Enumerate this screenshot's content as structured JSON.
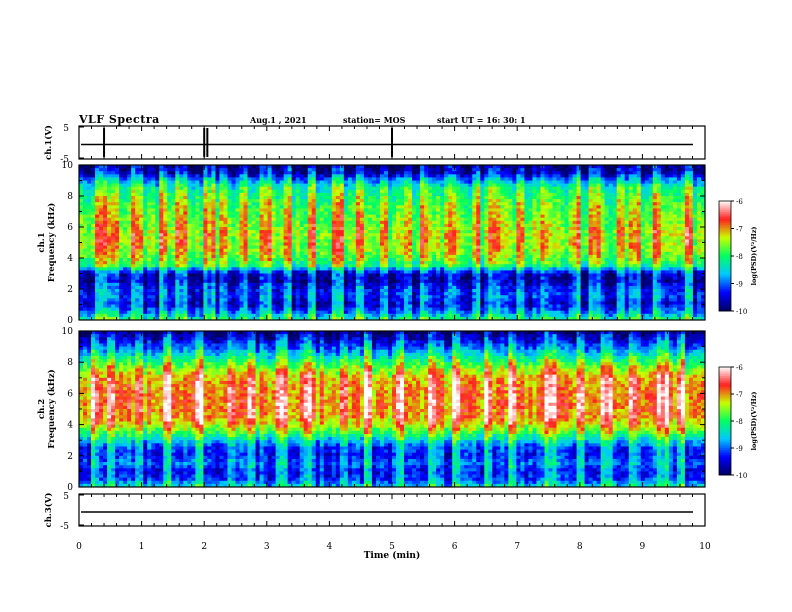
{
  "header": {
    "title": "VLF Spectra",
    "date": "Aug.1 , 2021",
    "station": "station= MOS",
    "start": "start UT = 16: 30: 1"
  },
  "colormap": {
    "colors": [
      "#000060",
      "#0000ff",
      "#00c8ff",
      "#00ff60",
      "#c8ff00",
      "#ff2020",
      "#ffffff"
    ]
  },
  "chart_data": [
    {
      "type": "line",
      "id": "ch1-waveform",
      "ylabel": "ch.1(V)",
      "ylim": [
        -5,
        5
      ],
      "yticks": [
        "5",
        "-5"
      ],
      "x": [
        0,
        10
      ],
      "values": [
        0,
        0
      ],
      "note_series": "flat trace near 0 V with sparse spikes"
    },
    {
      "type": "heatmap",
      "id": "ch1-spectrogram",
      "ylabel": "ch.1 Frequency (kHz)",
      "ylim": [
        0,
        10
      ],
      "yticks": [
        "0",
        "2",
        "4",
        "6",
        "8",
        "10"
      ],
      "xlim": [
        0,
        10
      ],
      "colorbar": {
        "label": "log(PSD)(V²/Hz)",
        "range": [
          -10,
          -6
        ],
        "ticks": [
          "-6",
          "-7",
          "-8",
          "-9",
          "-10"
        ]
      },
      "freq_profile_khz": [
        0,
        0.5,
        1,
        1.5,
        2,
        2.5,
        3,
        3.5,
        4,
        4.5,
        5,
        5.5,
        6,
        6.5,
        7,
        7.5,
        8,
        8.5,
        9,
        9.5,
        10
      ],
      "log_psd_profile": [
        -8.2,
        -9.0,
        -9.6,
        -9.3,
        -9.4,
        -9.8,
        -9.7,
        -8.2,
        -7.8,
        -7.6,
        -7.5,
        -7.5,
        -7.6,
        -7.7,
        -7.8,
        -7.9,
        -8.1,
        -8.3,
        -8.9,
        -9.8,
        -10.0
      ]
    },
    {
      "type": "heatmap",
      "id": "ch2-spectrogram",
      "ylabel": "ch.2 Frequency (kHz)",
      "ylim": [
        0,
        10
      ],
      "yticks": [
        "0",
        "2",
        "4",
        "6",
        "8",
        "10"
      ],
      "xlim": [
        0,
        10
      ],
      "colorbar": {
        "label": "log(PSD)(V²/Hz)",
        "range": [
          -10,
          -6
        ],
        "ticks": [
          "-6",
          "-7",
          "-8",
          "-9",
          "-10"
        ]
      },
      "freq_profile_khz": [
        0,
        0.5,
        1,
        1.5,
        2,
        2.5,
        3,
        3.5,
        4,
        4.5,
        5,
        5.5,
        6,
        6.5,
        7,
        7.5,
        8,
        8.5,
        9,
        9.5,
        10
      ],
      "log_psd_profile": [
        -8.5,
        -9.2,
        -9.4,
        -9.0,
        -9.3,
        -9.2,
        -8.6,
        -7.9,
        -7.3,
        -7.0,
        -6.9,
        -6.9,
        -6.9,
        -7.0,
        -7.1,
        -7.5,
        -8.0,
        -8.6,
        -9.1,
        -9.6,
        -10.0
      ]
    },
    {
      "type": "line",
      "id": "ch3-waveform",
      "ylabel": "ch.3(V)",
      "ylim": [
        -5,
        5
      ],
      "yticks": [
        "5",
        "-5"
      ],
      "x": [
        0,
        10
      ],
      "values": [
        0,
        0
      ]
    }
  ],
  "xaxis": {
    "label": "Time (min)",
    "ticks": [
      "0",
      "1",
      "2",
      "3",
      "4",
      "5",
      "6",
      "7",
      "8",
      "9",
      "10"
    ]
  }
}
